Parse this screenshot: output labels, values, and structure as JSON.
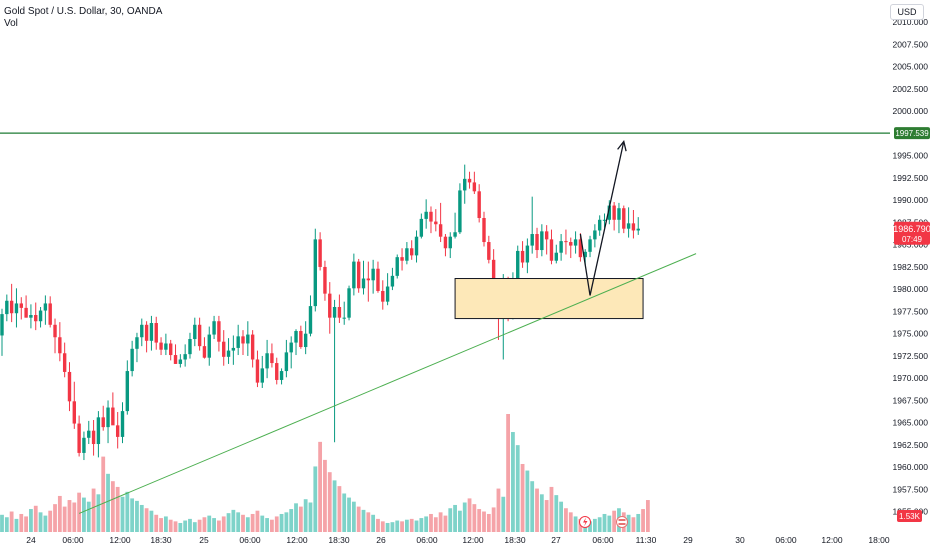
{
  "header": {
    "symbol": "Gold Spot / U.S. Dollar, 30, OANDA",
    "volume_label": "Vol",
    "currency_button": "USD"
  },
  "colors": {
    "up": "#26a69a",
    "up_candle": "#089981",
    "down": "#f23645",
    "up_volume": "#7ed3c9",
    "down_volume": "#f5a3a8",
    "resistance_line": "#1e7b34",
    "trendline": "#4caf50",
    "zone_fill": "#fde8b8",
    "zone_border": "#131722",
    "arrow": "#131722",
    "price_badge": "#f23645",
    "level_badge": "#2e7d32",
    "volume_badge": "#f23645",
    "event_lightning": "#f23645",
    "event_flag": "#e57373"
  },
  "chart_data": {
    "type": "candlestick",
    "title": "Gold Spot / U.S. Dollar, 30, OANDA",
    "ylim": [
      1953.5,
      2012.5
    ],
    "y_ticks": [
      "2010.000",
      "2007.500",
      "2005.000",
      "2002.500",
      "2000.000",
      "1995.000",
      "1992.500",
      "1990.000",
      "1987.500",
      "1985.000",
      "1982.500",
      "1980.000",
      "1977.500",
      "1975.000",
      "1972.500",
      "1970.000",
      "1967.500",
      "1965.000",
      "1962.500",
      "1960.000",
      "1957.500",
      "1955.000"
    ],
    "x_ticks": [
      "24",
      "06:00",
      "12:00",
      "18:30",
      "25",
      "06:00",
      "12:00",
      "18:30",
      "26",
      "06:00",
      "12:00",
      "18:30",
      "27",
      "06:00",
      "11:30",
      "29",
      "30",
      "06:00",
      "12:00",
      "18:00"
    ],
    "current_price": "1986.790",
    "countdown": "07:49",
    "resistance_level": "1997.539",
    "volume_last": "1.53K",
    "demand_zone": {
      "top": 1981.2,
      "bottom": 1976.7,
      "start_bar": 94,
      "end_bar": 133
    },
    "trendline": {
      "from": {
        "bar": 16,
        "price": 1954.8
      },
      "to": {
        "bar": 144,
        "price": 1984.0
      }
    },
    "projection_arrow": [
      {
        "bar": 120,
        "price": 1986.2
      },
      {
        "bar": 122,
        "price": 1979.3
      },
      {
        "bar": 129,
        "price": 1996.6
      }
    ],
    "candles": [
      [
        1974.8,
        1977.8,
        1972.5,
        1977.2
      ],
      [
        1977.2,
        1979.4,
        1976.4,
        1978.7
      ],
      [
        1978.7,
        1980.6,
        1976.3,
        1977.3
      ],
      [
        1977.3,
        1980.1,
        1975.7,
        1978.4
      ],
      [
        1978.4,
        1979.1,
        1976.6,
        1977.9
      ],
      [
        1977.9,
        1979.3,
        1976.8,
        1976.8
      ],
      [
        1976.8,
        1978.3,
        1975.6,
        1977.1
      ],
      [
        1977.1,
        1978.5,
        1975.4,
        1976.4
      ],
      [
        1976.4,
        1978.0,
        1975.7,
        1977.6
      ],
      [
        1977.6,
        1979.3,
        1976.0,
        1978.4
      ],
      [
        1978.4,
        1979.2,
        1975.7,
        1976.0
      ],
      [
        1976.0,
        1976.7,
        1972.8,
        1974.6
      ],
      [
        1974.6,
        1976.3,
        1971.9,
        1972.8
      ],
      [
        1972.8,
        1974.0,
        1970.1,
        1970.7
      ],
      [
        1970.7,
        1971.8,
        1966.3,
        1967.4
      ],
      [
        1967.4,
        1969.6,
        1964.3,
        1964.9
      ],
      [
        1964.9,
        1965.8,
        1961.2,
        1961.6
      ],
      [
        1961.6,
        1964.0,
        1960.8,
        1963.3
      ],
      [
        1963.3,
        1965.2,
        1962.6,
        1964.1
      ],
      [
        1964.1,
        1965.3,
        1961.3,
        1962.6
      ],
      [
        1962.6,
        1966.3,
        1961.1,
        1965.6
      ],
      [
        1965.6,
        1966.9,
        1964.1,
        1964.5
      ],
      [
        1964.5,
        1967.5,
        1962.7,
        1966.7
      ],
      [
        1966.7,
        1968.4,
        1965.0,
        1964.7
      ],
      [
        1964.7,
        1966.2,
        1962.1,
        1963.4
      ],
      [
        1963.4,
        1967.3,
        1962.7,
        1966.3
      ],
      [
        1966.3,
        1972.0,
        1965.9,
        1970.8
      ],
      [
        1970.8,
        1974.2,
        1970.2,
        1973.3
      ],
      [
        1973.3,
        1975.1,
        1971.8,
        1974.6
      ],
      [
        1974.6,
        1976.7,
        1973.6,
        1976.0
      ],
      [
        1976.0,
        1976.4,
        1972.9,
        1974.2
      ],
      [
        1974.2,
        1977.0,
        1973.1,
        1976.2
      ],
      [
        1976.2,
        1976.9,
        1973.2,
        1974.0
      ],
      [
        1974.0,
        1974.6,
        1972.6,
        1973.2
      ],
      [
        1973.2,
        1975.0,
        1972.6,
        1973.9
      ],
      [
        1973.9,
        1974.3,
        1972.0,
        1972.6
      ],
      [
        1972.6,
        1973.8,
        1971.6,
        1971.6
      ],
      [
        1971.6,
        1972.7,
        1971.2,
        1972.1
      ],
      [
        1972.1,
        1973.8,
        1971.3,
        1972.7
      ],
      [
        1972.7,
        1975.1,
        1972.2,
        1974.4
      ],
      [
        1974.4,
        1976.8,
        1973.6,
        1976.0
      ],
      [
        1976.0,
        1976.8,
        1973.1,
        1973.6
      ],
      [
        1973.6,
        1974.6,
        1972.2,
        1972.3
      ],
      [
        1972.3,
        1975.8,
        1971.4,
        1974.9
      ],
      [
        1974.9,
        1977.0,
        1974.4,
        1976.4
      ],
      [
        1976.4,
        1977.0,
        1973.0,
        1974.1
      ],
      [
        1974.1,
        1975.4,
        1971.4,
        1972.4
      ],
      [
        1972.4,
        1974.5,
        1971.6,
        1973.1
      ],
      [
        1973.1,
        1974.8,
        1971.5,
        1973.4
      ],
      [
        1973.4,
        1976.0,
        1972.6,
        1974.7
      ],
      [
        1974.7,
        1975.4,
        1972.6,
        1973.9
      ],
      [
        1973.9,
        1976.4,
        1972.5,
        1974.9
      ],
      [
        1974.9,
        1975.4,
        1971.2,
        1972.1
      ],
      [
        1972.1,
        1973.1,
        1969.0,
        1969.5
      ],
      [
        1969.5,
        1972.5,
        1968.9,
        1971.1
      ],
      [
        1971.1,
        1974.3,
        1970.0,
        1972.8
      ],
      [
        1972.8,
        1973.9,
        1971.2,
        1971.7
      ],
      [
        1971.7,
        1972.3,
        1969.3,
        1969.8
      ],
      [
        1969.8,
        1971.1,
        1969.3,
        1970.8
      ],
      [
        1970.8,
        1974.3,
        1970.1,
        1972.9
      ],
      [
        1972.9,
        1974.7,
        1971.1,
        1974.0
      ],
      [
        1974.0,
        1975.5,
        1972.6,
        1975.3
      ],
      [
        1975.3,
        1975.9,
        1973.3,
        1973.5
      ],
      [
        1973.5,
        1976.4,
        1972.7,
        1975.0
      ],
      [
        1975.0,
        1979.3,
        1974.7,
        1978.1
      ],
      [
        1978.1,
        1986.8,
        1977.5,
        1985.6
      ],
      [
        1985.6,
        1986.4,
        1982.1,
        1982.5
      ],
      [
        1982.5,
        1983.2,
        1978.7,
        1979.5
      ],
      [
        1979.5,
        1980.8,
        1975.0,
        1976.8
      ],
      [
        1976.8,
        1978.8,
        1962.8,
        1978.0
      ],
      [
        1978.0,
        1979.4,
        1976.2,
        1976.8
      ],
      [
        1976.8,
        1978.6,
        1976.0,
        1976.8
      ],
      [
        1976.8,
        1980.4,
        1976.5,
        1980.1
      ],
      [
        1980.1,
        1984.0,
        1979.3,
        1983.1
      ],
      [
        1983.1,
        1983.4,
        1979.6,
        1980.1
      ],
      [
        1980.1,
        1983.2,
        1979.4,
        1981.2
      ],
      [
        1981.2,
        1983.1,
        1978.6,
        1981.0
      ],
      [
        1981.0,
        1983.3,
        1979.5,
        1982.3
      ],
      [
        1982.3,
        1983.1,
        1979.6,
        1979.8
      ],
      [
        1979.8,
        1981.0,
        1977.7,
        1978.6
      ],
      [
        1978.6,
        1981.8,
        1978.2,
        1980.3
      ],
      [
        1980.3,
        1982.4,
        1979.9,
        1981.5
      ],
      [
        1981.5,
        1983.9,
        1981.2,
        1983.6
      ],
      [
        1983.6,
        1984.6,
        1982.1,
        1983.2
      ],
      [
        1983.2,
        1985.3,
        1982.8,
        1984.6
      ],
      [
        1984.6,
        1985.5,
        1983.3,
        1983.8
      ],
      [
        1983.8,
        1986.6,
        1983.0,
        1985.9
      ],
      [
        1985.9,
        1988.5,
        1985.7,
        1987.9
      ],
      [
        1987.9,
        1990.1,
        1986.8,
        1988.7
      ],
      [
        1988.7,
        1989.3,
        1986.3,
        1987.6
      ],
      [
        1987.6,
        1989.0,
        1986.5,
        1987.3
      ],
      [
        1987.3,
        1989.7,
        1985.3,
        1985.9
      ],
      [
        1985.9,
        1986.2,
        1983.7,
        1984.6
      ],
      [
        1984.6,
        1986.4,
        1983.5,
        1985.9
      ],
      [
        1985.9,
        1988.6,
        1985.7,
        1986.4
      ],
      [
        1986.4,
        1991.9,
        1986.2,
        1991.1
      ],
      [
        1991.1,
        1994.0,
        1989.6,
        1992.4
      ],
      [
        1992.4,
        1993.2,
        1991.3,
        1992.0
      ],
      [
        1992.0,
        1993.2,
        1990.7,
        1991.0
      ],
      [
        1991.0,
        1991.8,
        1987.5,
        1988.0
      ],
      [
        1988.0,
        1988.7,
        1984.8,
        1985.3
      ],
      [
        1985.3,
        1986.0,
        1982.9,
        1983.3
      ],
      [
        1983.3,
        1984.5,
        1978.4,
        1979.1
      ],
      [
        1979.1,
        1980.7,
        1974.3,
        1977.3
      ],
      [
        1977.3,
        1981.7,
        1972.1,
        1980.2
      ],
      [
        1980.2,
        1981.4,
        1976.4,
        1977.4
      ],
      [
        1977.4,
        1981.9,
        1976.6,
        1981.2
      ],
      [
        1981.2,
        1984.9,
        1980.7,
        1984.3
      ],
      [
        1984.3,
        1985.4,
        1982.4,
        1983.0
      ],
      [
        1983.0,
        1985.7,
        1981.8,
        1984.9
      ],
      [
        1984.9,
        1990.4,
        1984.0,
        1986.2
      ],
      [
        1986.2,
        1986.9,
        1983.5,
        1984.4
      ],
      [
        1984.4,
        1987.3,
        1983.7,
        1986.5
      ],
      [
        1986.5,
        1987.2,
        1983.9,
        1985.6
      ],
      [
        1985.6,
        1986.7,
        1982.8,
        1983.2
      ],
      [
        1983.2,
        1985.0,
        1982.9,
        1984.1
      ],
      [
        1984.1,
        1986.2,
        1983.2,
        1985.4
      ],
      [
        1985.4,
        1986.7,
        1983.9,
        1985.3
      ],
      [
        1985.3,
        1985.8,
        1983.5,
        1984.9
      ],
      [
        1984.9,
        1986.5,
        1984.0,
        1985.6
      ],
      [
        1985.6,
        1986.3,
        1983.1,
        1983.6
      ],
      [
        1983.6,
        1984.5,
        1982.7,
        1984.2
      ],
      [
        1984.2,
        1986.0,
        1983.6,
        1985.6
      ],
      [
        1985.6,
        1987.3,
        1984.7,
        1986.6
      ],
      [
        1986.6,
        1988.3,
        1986.0,
        1987.8
      ],
      [
        1987.8,
        1988.5,
        1986.9,
        1987.8
      ],
      [
        1987.8,
        1990.0,
        1987.3,
        1989.4
      ],
      [
        1989.4,
        1989.8,
        1986.6,
        1987.8
      ],
      [
        1987.8,
        1989.7,
        1986.3,
        1989.1
      ],
      [
        1989.1,
        1989.4,
        1986.3,
        1986.8
      ],
      [
        1986.8,
        1989.2,
        1985.8,
        1987.4
      ],
      [
        1987.4,
        1988.9,
        1985.7,
        1986.6
      ],
      [
        1986.6,
        1988.1,
        1986.1,
        1986.8
      ]
    ],
    "volume": {
      "max": 14.4,
      "values": [
        2.1,
        1.8,
        2.5,
        1.6,
        2.2,
        1.9,
        2.8,
        3.2,
        2.4,
        2.0,
        2.6,
        3.4,
        4.4,
        3.1,
        3.9,
        3.6,
        4.8,
        4.2,
        3.7,
        5.3,
        4.6,
        9.2,
        7.1,
        6.2,
        5.5,
        4.3,
        4.9,
        4.1,
        3.8,
        3.3,
        2.9,
        2.6,
        2.1,
        1.7,
        1.9,
        1.5,
        1.3,
        1.1,
        1.4,
        1.6,
        1.2,
        1.5,
        1.8,
        2.0,
        1.7,
        1.4,
        1.9,
        2.3,
        2.7,
        2.4,
        2.1,
        1.8,
        2.2,
        2.6,
        2.0,
        1.7,
        1.5,
        1.9,
        2.2,
        2.4,
        2.8,
        3.5,
        3.1,
        4.0,
        3.6,
        8.0,
        11.0,
        8.8,
        7.3,
        6.3,
        5.6,
        4.7,
        4.2,
        3.7,
        3.1,
        2.7,
        2.4,
        2.1,
        1.6,
        1.3,
        1.1,
        1.2,
        1.4,
        1.3,
        1.5,
        1.6,
        1.4,
        1.7,
        1.9,
        2.2,
        1.8,
        2.4,
        2.0,
        2.9,
        3.3,
        2.6,
        3.6,
        4.1,
        3.4,
        2.8,
        2.5,
        2.2,
        3.0,
        5.3,
        4.3,
        14.4,
        12.2,
        10.6,
        8.3,
        7.5,
        6.2,
        5.3,
        4.6,
        3.9,
        5.5,
        4.5,
        3.7,
        2.9,
        2.4,
        1.9,
        1.6,
        1.4,
        1.3,
        1.6,
        1.8,
        2.2,
        2.0,
        2.6,
        2.9,
        2.4,
        2.1,
        1.8,
        2.2,
        2.8,
        3.9
      ]
    }
  }
}
